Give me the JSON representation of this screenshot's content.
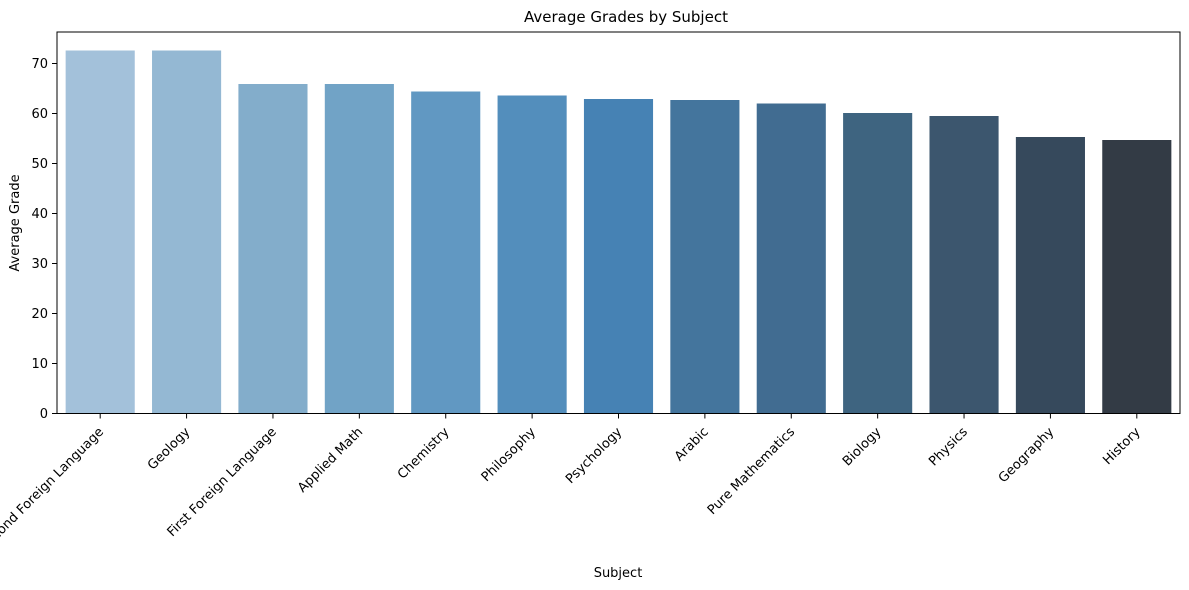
{
  "chart_data": {
    "type": "bar",
    "title": "Average Grades by Subject",
    "xlabel": "Subject",
    "ylabel": "Average Grade",
    "ylim": [
      0,
      76.3
    ],
    "yticks": [
      0,
      10,
      20,
      30,
      40,
      50,
      60,
      70
    ],
    "grid": false,
    "legend": "none",
    "categories": [
      "Second Foreign Language",
      "Geology",
      "First Foreign Language",
      "Applied Math",
      "Chemistry",
      "Philosophy",
      "Psychology",
      "Arabic",
      "Pure Mathematics",
      "Biology",
      "Physics",
      "Geography",
      "History"
    ],
    "values": [
      72.6,
      72.6,
      65.9,
      65.9,
      64.4,
      63.6,
      62.9,
      62.7,
      62.0,
      60.1,
      59.5,
      55.3,
      54.7
    ],
    "colors": [
      "#a3c1da",
      "#94b8d3",
      "#83adcb",
      "#71a3c6",
      "#6198c2",
      "#538ebc",
      "#4682b4",
      "#44759d",
      "#416c91",
      "#3e6480",
      "#3c566e",
      "#36495c",
      "#333b45"
    ]
  }
}
